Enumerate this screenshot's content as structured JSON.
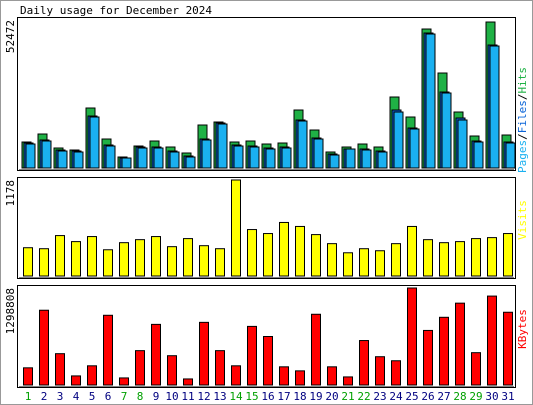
{
  "chart_data": [
    {
      "type": "bar",
      "title": "Daily usage for December 2024",
      "legend_separator": "/",
      "ylim": [
        0,
        52472
      ],
      "yticks": [
        52472
      ],
      "series": [
        {
          "name": "Hits",
          "color": "#1fb145",
          "values": [
            9217,
            12053,
            7090,
            6381,
            21270,
            10281,
            3900,
            7799,
            9572,
            7445,
            5318,
            15244,
            16307,
            9217,
            9572,
            8508,
            8863,
            20561,
            13471,
            5672,
            7445,
            8508,
            7445,
            25170,
            18080,
            49276,
            33678,
            19852,
            11344,
            51757,
            11699
          ]
        },
        {
          "name": "Files",
          "color": "#0a64d8",
          "values": [
            8863,
            9926,
            6381,
            6027,
            18434,
            8154,
            3545,
            7445,
            7445,
            6027,
            4254,
            10281,
            15953,
            8154,
            7799,
            7090,
            7445,
            17016,
            10635,
            4963,
            6736,
            6736,
            6027,
            20561,
            14180,
            47858,
            26942,
            17725,
            9572,
            43604,
            9217
          ]
        },
        {
          "name": "Pages",
          "color": "#1ab0f0",
          "values": [
            8508,
            9572,
            6027,
            5672,
            18080,
            7799,
            3545,
            7090,
            7090,
            5672,
            3900,
            9926,
            15598,
            7799,
            7445,
            6736,
            7090,
            16662,
            10281,
            4609,
            6736,
            6381,
            5672,
            19852,
            13826,
            47503,
            26588,
            17016,
            9217,
            43249,
            8863
          ]
        }
      ]
    },
    {
      "type": "bar",
      "ylim": [
        0,
        1178
      ],
      "yticks": [
        1178
      ],
      "series": [
        {
          "name": "Visits",
          "color": "#ffff00",
          "values": [
            347,
            335,
            496,
            422,
            484,
            322,
            409,
            446,
            484,
            360,
            459,
            372,
            335,
            1178,
            570,
            521,
            657,
            608,
            508,
            397,
            285,
            335,
            310,
            397,
            608,
            446,
            409,
            422,
            459,
            471,
            521
          ]
        }
      ]
    },
    {
      "type": "bar",
      "ylim": [
        0,
        1298808
      ],
      "yticks": [
        1298808
      ],
      "categories": [
        "1",
        "2",
        "3",
        "4",
        "5",
        "6",
        "7",
        "8",
        "9",
        "10",
        "11",
        "12",
        "13",
        "14",
        "15",
        "16",
        "17",
        "18",
        "19",
        "20",
        "21",
        "22",
        "23",
        "24",
        "25",
        "26",
        "27",
        "28",
        "29",
        "30",
        "31"
      ],
      "category_colors": [
        "#00a000",
        "#000080",
        "#000080",
        "#000080",
        "#000080",
        "#000080",
        "#00a000",
        "#00a000",
        "#000080",
        "#000080",
        "#000080",
        "#000080",
        "#000080",
        "#00a000",
        "#00a000",
        "#000080",
        "#000080",
        "#000080",
        "#000080",
        "#000080",
        "#00a000",
        "#00a000",
        "#000080",
        "#000080",
        "#000080",
        "#000080",
        "#000080",
        "#00a000",
        "#00a000",
        "#000080",
        "#000080"
      ],
      "series": [
        {
          "name": "KBytes",
          "color": "#ff0000",
          "values": [
            229993,
            1001146,
            419399,
            121761,
            257051,
            933501,
            94703,
            459986,
            811740,
            392341,
            81174,
            838798,
            459986,
            257051,
            784682,
            649392,
            243522,
            189406,
            947030,
            243522,
            108232,
            595276,
            378812,
            324696,
            1298808,
            730566,
            906443,
            1095849,
            432928,
            1190574,
            974088
          ]
        }
      ]
    }
  ]
}
